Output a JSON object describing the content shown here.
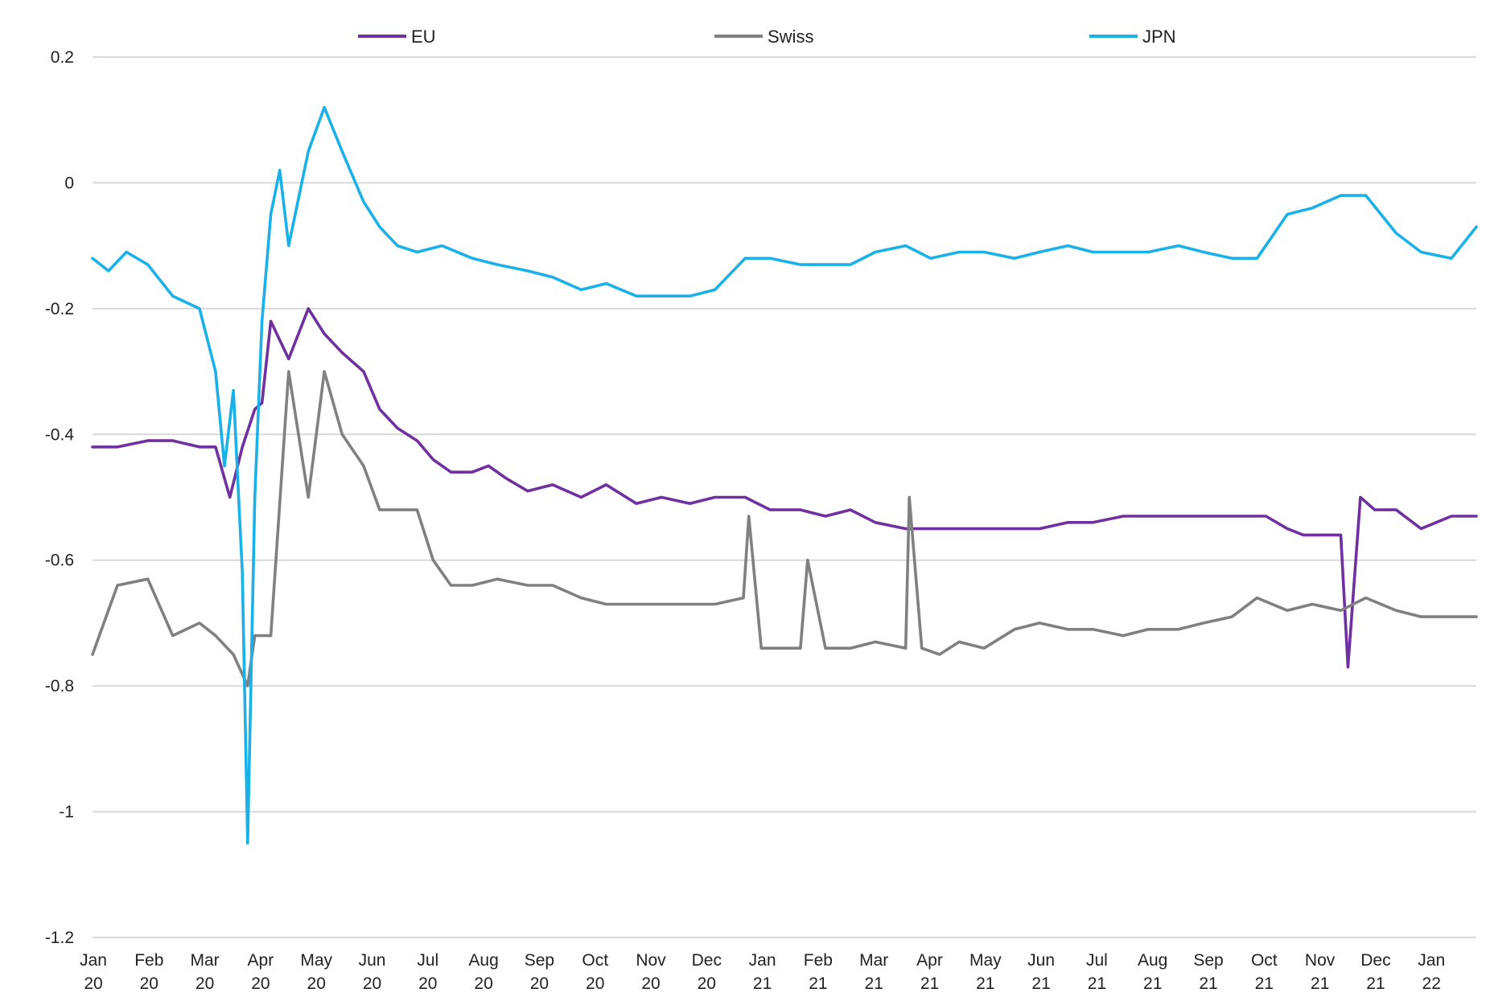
{
  "chart_data": {
    "type": "line",
    "title": "",
    "xlabel": "",
    "ylabel": "",
    "ylim": [
      -1.2,
      0.2
    ],
    "y_ticks": [
      "0.2",
      "0",
      "-0.2",
      "-0.4",
      "-0.6",
      "-0.8",
      "-1",
      "-1.2"
    ],
    "y_tick_values": [
      0.2,
      0,
      -0.2,
      -0.4,
      -0.6,
      -0.8,
      -1,
      -1.2
    ],
    "x_ticks": [
      [
        "Jan",
        "20"
      ],
      [
        "Feb",
        "20"
      ],
      [
        "Mar",
        "20"
      ],
      [
        "Apr",
        "20"
      ],
      [
        "May",
        "20"
      ],
      [
        "Jun",
        "20"
      ],
      [
        "Jul",
        "20"
      ],
      [
        "Aug",
        "20"
      ],
      [
        "Sep",
        "20"
      ],
      [
        "Oct",
        "20"
      ],
      [
        "Nov",
        "20"
      ],
      [
        "Dec",
        "20"
      ],
      [
        "Jan",
        "21"
      ],
      [
        "Feb",
        "21"
      ],
      [
        "Mar",
        "21"
      ],
      [
        "Apr",
        "21"
      ],
      [
        "May",
        "21"
      ],
      [
        "Jun",
        "21"
      ],
      [
        "Jul",
        "21"
      ],
      [
        "Aug",
        "21"
      ],
      [
        "Sep",
        "21"
      ],
      [
        "Oct",
        "21"
      ],
      [
        "Nov",
        "21"
      ],
      [
        "Dec",
        "21"
      ],
      [
        "Jan",
        "22"
      ]
    ],
    "x_range": [
      "2020-01-01",
      "2022-02-15"
    ],
    "grid": "horizontal",
    "legend_position": "top",
    "series": [
      {
        "name": "EU",
        "color": "#7030a0",
        "x": [
          "2020-01-01",
          "2020-01-15",
          "2020-02-01",
          "2020-02-15",
          "2020-03-01",
          "2020-03-10",
          "2020-03-18",
          "2020-03-25",
          "2020-04-01",
          "2020-04-05",
          "2020-04-10",
          "2020-04-20",
          "2020-05-01",
          "2020-05-10",
          "2020-05-20",
          "2020-06-01",
          "2020-06-10",
          "2020-06-20",
          "2020-07-01",
          "2020-07-10",
          "2020-07-20",
          "2020-08-01",
          "2020-08-10",
          "2020-08-20",
          "2020-09-01",
          "2020-09-15",
          "2020-10-01",
          "2020-10-15",
          "2020-11-01",
          "2020-11-15",
          "2020-12-01",
          "2020-12-15",
          "2021-01-01",
          "2021-01-15",
          "2021-02-01",
          "2021-02-15",
          "2021-03-01",
          "2021-03-15",
          "2021-04-01",
          "2021-04-15",
          "2021-05-01",
          "2021-05-15",
          "2021-06-01",
          "2021-06-15",
          "2021-07-01",
          "2021-07-15",
          "2021-08-01",
          "2021-08-15",
          "2021-09-01",
          "2021-09-15",
          "2021-10-01",
          "2021-10-10",
          "2021-10-20",
          "2021-11-01",
          "2021-11-10",
          "2021-11-20",
          "2021-12-01",
          "2021-12-05",
          "2021-12-12",
          "2021-12-20",
          "2022-01-01",
          "2022-01-15",
          "2022-02-01",
          "2022-02-15"
        ],
        "values": [
          -0.42,
          -0.42,
          -0.41,
          -0.41,
          -0.42,
          -0.42,
          -0.5,
          -0.42,
          -0.36,
          -0.35,
          -0.22,
          -0.28,
          -0.2,
          -0.24,
          -0.27,
          -0.3,
          -0.36,
          -0.39,
          -0.41,
          -0.44,
          -0.46,
          -0.46,
          -0.45,
          -0.47,
          -0.49,
          -0.48,
          -0.5,
          -0.48,
          -0.51,
          -0.5,
          -0.51,
          -0.5,
          -0.5,
          -0.52,
          -0.52,
          -0.53,
          -0.52,
          -0.54,
          -0.55,
          -0.55,
          -0.55,
          -0.55,
          -0.55,
          -0.55,
          -0.54,
          -0.54,
          -0.53,
          -0.53,
          -0.53,
          -0.53,
          -0.53,
          -0.53,
          -0.53,
          -0.55,
          -0.56,
          -0.56,
          -0.56,
          -0.77,
          -0.5,
          -0.52,
          -0.52,
          -0.55,
          -0.53,
          -0.53
        ]
      },
      {
        "name": "Swiss",
        "color": "#808080",
        "x": [
          "2020-01-01",
          "2020-01-15",
          "2020-02-01",
          "2020-02-15",
          "2020-03-01",
          "2020-03-10",
          "2020-03-20",
          "2020-03-28",
          "2020-04-01",
          "2020-04-10",
          "2020-04-20",
          "2020-05-01",
          "2020-05-10",
          "2020-05-20",
          "2020-06-01",
          "2020-06-10",
          "2020-06-20",
          "2020-07-01",
          "2020-07-10",
          "2020-07-20",
          "2020-08-01",
          "2020-08-15",
          "2020-09-01",
          "2020-09-15",
          "2020-10-01",
          "2020-10-15",
          "2020-11-01",
          "2020-11-15",
          "2020-12-01",
          "2020-12-15",
          "2020-12-31",
          "2021-01-03",
          "2021-01-10",
          "2021-01-20",
          "2021-02-01",
          "2021-02-05",
          "2021-02-15",
          "2021-03-01",
          "2021-03-15",
          "2021-04-01",
          "2021-04-03",
          "2021-04-10",
          "2021-04-20",
          "2021-05-01",
          "2021-05-15",
          "2021-06-01",
          "2021-06-15",
          "2021-07-01",
          "2021-07-15",
          "2021-08-01",
          "2021-08-15",
          "2021-09-01",
          "2021-09-15",
          "2021-10-01",
          "2021-10-15",
          "2021-11-01",
          "2021-11-15",
          "2021-12-01",
          "2021-12-15",
          "2022-01-01",
          "2022-01-15",
          "2022-02-01",
          "2022-02-15"
        ],
        "values": [
          -0.75,
          -0.64,
          -0.63,
          -0.72,
          -0.7,
          -0.72,
          -0.75,
          -0.8,
          -0.72,
          -0.72,
          -0.3,
          -0.5,
          -0.3,
          -0.4,
          -0.45,
          -0.52,
          -0.52,
          -0.52,
          -0.6,
          -0.64,
          -0.64,
          -0.63,
          -0.64,
          -0.64,
          -0.66,
          -0.67,
          -0.67,
          -0.67,
          -0.67,
          -0.67,
          -0.66,
          -0.53,
          -0.74,
          -0.74,
          -0.74,
          -0.6,
          -0.74,
          -0.74,
          -0.73,
          -0.74,
          -0.5,
          -0.74,
          -0.75,
          -0.73,
          -0.74,
          -0.71,
          -0.7,
          -0.71,
          -0.71,
          -0.72,
          -0.71,
          -0.71,
          -0.7,
          -0.69,
          -0.66,
          -0.68,
          -0.67,
          -0.68,
          -0.66,
          -0.68,
          -0.69,
          -0.69,
          -0.69
        ]
      },
      {
        "name": "JPN",
        "color": "#1ab0e8",
        "x": [
          "2020-01-01",
          "2020-01-10",
          "2020-01-20",
          "2020-02-01",
          "2020-02-15",
          "2020-03-01",
          "2020-03-10",
          "2020-03-15",
          "2020-03-20",
          "2020-03-25",
          "2020-03-28",
          "2020-04-01",
          "2020-04-05",
          "2020-04-10",
          "2020-04-15",
          "2020-04-20",
          "2020-05-01",
          "2020-05-10",
          "2020-05-20",
          "2020-06-01",
          "2020-06-10",
          "2020-06-20",
          "2020-07-01",
          "2020-07-15",
          "2020-08-01",
          "2020-08-15",
          "2020-09-01",
          "2020-09-15",
          "2020-10-01",
          "2020-10-15",
          "2020-11-01",
          "2020-11-15",
          "2020-12-01",
          "2020-12-15",
          "2021-01-01",
          "2021-01-15",
          "2021-02-01",
          "2021-02-15",
          "2021-03-01",
          "2021-03-15",
          "2021-04-01",
          "2021-04-15",
          "2021-05-01",
          "2021-05-15",
          "2021-06-01",
          "2021-06-15",
          "2021-07-01",
          "2021-07-15",
          "2021-08-01",
          "2021-08-15",
          "2021-09-01",
          "2021-09-15",
          "2021-10-01",
          "2021-10-15",
          "2021-11-01",
          "2021-11-15",
          "2021-12-01",
          "2021-12-15",
          "2022-01-01",
          "2022-01-15",
          "2022-02-01",
          "2022-02-15"
        ],
        "values": [
          -0.12,
          -0.14,
          -0.11,
          -0.13,
          -0.18,
          -0.2,
          -0.3,
          -0.45,
          -0.33,
          -0.62,
          -1.05,
          -0.5,
          -0.22,
          -0.05,
          0.02,
          -0.1,
          0.05,
          0.12,
          0.05,
          -0.03,
          -0.07,
          -0.1,
          -0.11,
          -0.1,
          -0.12,
          -0.13,
          -0.14,
          -0.15,
          -0.17,
          -0.16,
          -0.18,
          -0.18,
          -0.18,
          -0.17,
          -0.12,
          -0.12,
          -0.13,
          -0.13,
          -0.13,
          -0.11,
          -0.1,
          -0.12,
          -0.11,
          -0.11,
          -0.12,
          -0.11,
          -0.1,
          -0.11,
          -0.11,
          -0.11,
          -0.1,
          -0.11,
          -0.12,
          -0.12,
          -0.05,
          -0.04,
          -0.02,
          -0.02,
          -0.08,
          -0.11,
          -0.12,
          -0.07
        ]
      }
    ]
  }
}
